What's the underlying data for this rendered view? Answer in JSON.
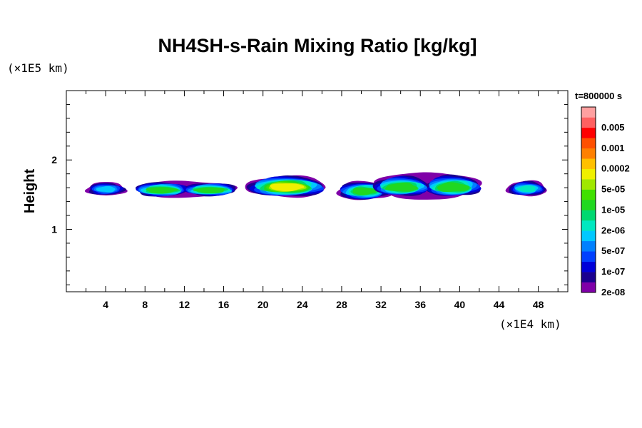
{
  "chart_data": {
    "type": "heatmap",
    "title": "NH4SH-s-Rain Mixing Ratio [kg/kg]",
    "ylabel": "Height",
    "xlabel": "",
    "x_unit": "(×1E4 km)",
    "y_unit": "(×1E5 km)",
    "time_label": "t=800000 s",
    "xlim": [
      0,
      51
    ],
    "ylim": [
      0.1,
      3.0
    ],
    "x_ticks": [
      4,
      8,
      12,
      16,
      20,
      24,
      28,
      32,
      36,
      40,
      44,
      48
    ],
    "x_tick_labels": [
      "4",
      "8",
      "12",
      "16",
      "20",
      "24",
      "28",
      "32",
      "36",
      "40",
      "44",
      "48"
    ],
    "y_ticks": [
      1,
      2
    ],
    "y_tick_labels": [
      "1",
      "2"
    ],
    "grid": false,
    "colorbar": {
      "placement": "right",
      "levels": [
        {
          "label": "2e-08",
          "color": "#7f00a8"
        },
        {
          "label": "",
          "color": "#1a008f"
        },
        {
          "label": "1e-07",
          "color": "#0000d8"
        },
        {
          "label": "",
          "color": "#0040ff"
        },
        {
          "label": "5e-07",
          "color": "#0080ff"
        },
        {
          "label": "",
          "color": "#00c8ff"
        },
        {
          "label": "2e-06",
          "color": "#00e8c0"
        },
        {
          "label": "",
          "color": "#00d870"
        },
        {
          "label": "1e-05",
          "color": "#20d820"
        },
        {
          "label": "",
          "color": "#40e000"
        },
        {
          "label": "5e-05",
          "color": "#a0e800"
        },
        {
          "label": "",
          "color": "#f0f000"
        },
        {
          "label": "0.0002",
          "color": "#ffc000"
        },
        {
          "label": "",
          "color": "#ff8000"
        },
        {
          "label": "0.001",
          "color": "#ff5000"
        },
        {
          "label": "",
          "color": "#ff0000"
        },
        {
          "label": "0.005",
          "color": "#ff6060"
        },
        {
          "label": "",
          "color": "#ffa0a0"
        }
      ]
    },
    "clouds": [
      {
        "x": [
          2.0,
          6.1
        ],
        "y": [
          1.47,
          1.68
        ],
        "peak_level": 5
      },
      {
        "x": [
          7.2,
          17.1
        ],
        "y": [
          1.44,
          1.7
        ],
        "peak_level": 8
      },
      {
        "x": [
          18.3,
          26.5
        ],
        "y": [
          1.44,
          1.77
        ],
        "peak_level": 11
      },
      {
        "x": [
          27.5,
          33.0
        ],
        "y": [
          1.4,
          1.69
        ],
        "peak_level": 8
      },
      {
        "x": [
          31.5,
          41.9
        ],
        "y": [
          1.4,
          1.83
        ],
        "peak_level": 8
      },
      {
        "x": [
          44.8,
          48.9
        ],
        "y": [
          1.46,
          1.7
        ],
        "peak_level": 6
      }
    ]
  }
}
